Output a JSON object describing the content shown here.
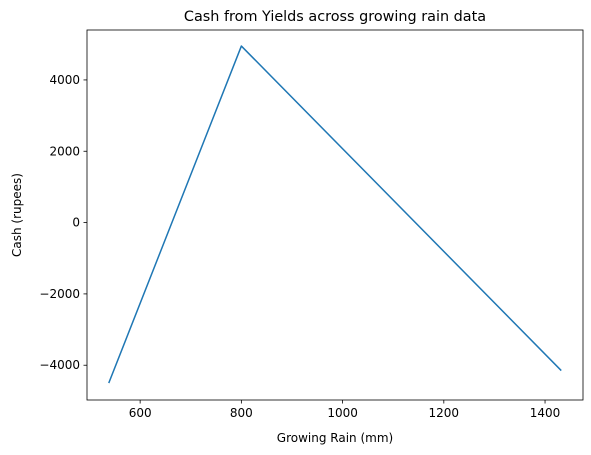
{
  "chart_data": {
    "type": "line",
    "title": "Cash from Yields across growing rain data",
    "xlabel": "Growing Rain (mm)",
    "ylabel": "Cash (rupees)",
    "xlim": [
      495,
      1475
    ],
    "ylim": [
      -4975,
      5400
    ],
    "xticks": [
      600,
      800,
      1000,
      1200,
      1400
    ],
    "xtick_labels": [
      "600",
      "800",
      "1000",
      "1200",
      "1400"
    ],
    "yticks": [
      -4000,
      -2000,
      0,
      2000,
      4000
    ],
    "ytick_labels": [
      "−4000",
      "−2000",
      "0",
      "2000",
      "4000"
    ],
    "grid": false,
    "series": [
      {
        "color": "#1f77b4",
        "x": [
          538,
          800,
          1432
        ],
        "y": [
          -4500,
          4950,
          -4150
        ]
      }
    ]
  }
}
